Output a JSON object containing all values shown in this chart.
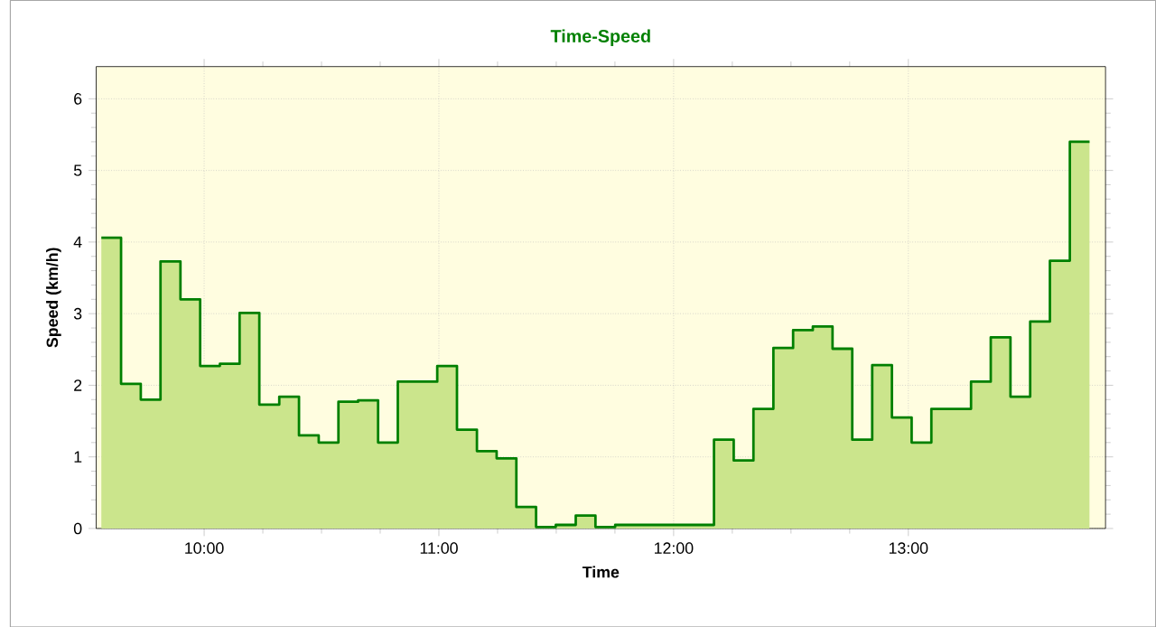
{
  "chart_data": {
    "type": "step",
    "title": "Time-Speed",
    "xlabel": "Time",
    "ylabel": "Speed (km/h)",
    "x": [
      9.562,
      9.646,
      9.73,
      9.814,
      9.899,
      9.983,
      10.067,
      10.151,
      10.235,
      10.32,
      10.404,
      10.488,
      10.572,
      10.656,
      10.741,
      10.825,
      10.909,
      10.993,
      11.077,
      11.162,
      11.246,
      11.33,
      11.414,
      11.498,
      11.583,
      11.667,
      11.751,
      11.835,
      11.919,
      12.004,
      12.088,
      12.172,
      12.256,
      12.34,
      12.425,
      12.509,
      12.593,
      12.677,
      12.761,
      12.846,
      12.93,
      13.014,
      13.098,
      13.182,
      13.267,
      13.351,
      13.435,
      13.519,
      13.603,
      13.688,
      13.772
    ],
    "values": [
      4.06,
      2.02,
      1.8,
      3.73,
      3.2,
      2.27,
      2.3,
      3.01,
      1.73,
      1.84,
      1.3,
      1.2,
      1.77,
      1.79,
      1.2,
      2.05,
      2.05,
      2.27,
      1.38,
      1.08,
      0.98,
      0.3,
      0.02,
      0.05,
      0.18,
      0.02,
      0.05,
      0.05,
      0.05,
      0.05,
      0.05,
      1.24,
      0.95,
      1.67,
      2.52,
      2.77,
      2.82,
      2.51,
      1.24,
      2.28,
      1.55,
      1.2,
      1.67,
      1.67,
      2.05,
      2.67,
      1.84,
      2.89,
      3.74,
      5.4,
      5.4
    ],
    "color": "#008000",
    "xlim": [
      9.54,
      13.84
    ],
    "ylim": [
      0,
      6.45
    ],
    "xticks": [
      {
        "value": 10,
        "label": "10:00"
      },
      {
        "value": 11,
        "label": "11:00"
      },
      {
        "value": 12,
        "label": "12:00"
      },
      {
        "value": 13,
        "label": "13:00"
      }
    ],
    "yticks": [
      0,
      1,
      2,
      3,
      4,
      5,
      6
    ],
    "grid": true,
    "marker": "none",
    "line_style": "solid"
  }
}
